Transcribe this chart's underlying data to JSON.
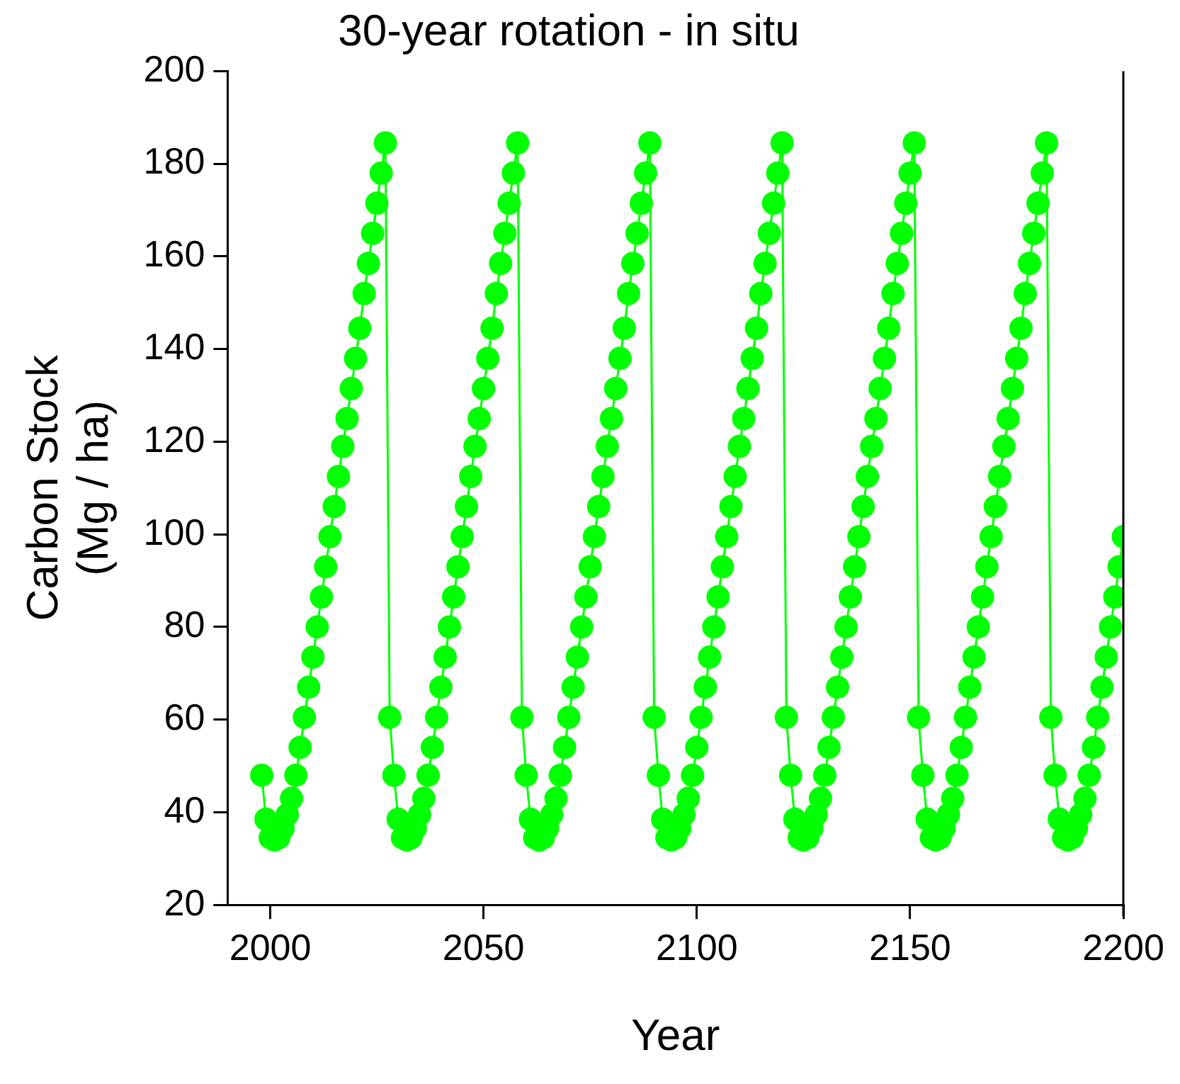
{
  "chart_data": {
    "type": "line",
    "title": "30-year rotation - in situ",
    "xlabel": "Year",
    "ylabel": "Carbon Stock\n(Mg / ha)",
    "x": [
      1998,
      1999,
      2000,
      2001,
      2002,
      2003,
      2004,
      2005,
      2006,
      2007,
      2008,
      2009,
      2010,
      2011,
      2012,
      2013,
      2014,
      2015,
      2016,
      2017,
      2018,
      2019,
      2020,
      2021,
      2022,
      2023,
      2024,
      2025,
      2026,
      2027,
      2028,
      2029,
      2030,
      2031,
      2032,
      2033,
      2034,
      2035,
      2036,
      2037,
      2038,
      2039,
      2040,
      2041,
      2042,
      2043,
      2044,
      2045,
      2046,
      2047,
      2048,
      2049,
      2050,
      2051,
      2052,
      2053,
      2054,
      2055,
      2056,
      2057,
      2058,
      2059,
      2060,
      2061,
      2062,
      2063,
      2064,
      2065,
      2066,
      2067,
      2068,
      2069,
      2070,
      2071,
      2072,
      2073,
      2074,
      2075,
      2076,
      2077,
      2078,
      2079,
      2080,
      2081,
      2082,
      2083,
      2084,
      2085,
      2086,
      2087,
      2088,
      2089,
      2090,
      2091,
      2092,
      2093,
      2094,
      2095,
      2096,
      2097,
      2098,
      2099,
      2100,
      2101,
      2102,
      2103,
      2104,
      2105,
      2106,
      2107,
      2108,
      2109,
      2110,
      2111,
      2112,
      2113,
      2114,
      2115,
      2116,
      2117,
      2118,
      2119,
      2120,
      2121,
      2122,
      2123,
      2124,
      2125,
      2126,
      2127,
      2128,
      2129,
      2130,
      2131,
      2132,
      2133,
      2134,
      2135,
      2136,
      2137,
      2138,
      2139,
      2140,
      2141,
      2142,
      2143,
      2144,
      2145,
      2146,
      2147,
      2148,
      2149,
      2150,
      2151,
      2152,
      2153,
      2154,
      2155,
      2156,
      2157,
      2158,
      2159,
      2160,
      2161,
      2162,
      2163,
      2164,
      2165,
      2166,
      2167,
      2168,
      2169,
      2170,
      2171,
      2172,
      2173,
      2174,
      2175,
      2176,
      2177,
      2178,
      2179,
      2180,
      2181,
      2182,
      2183,
      2184,
      2185,
      2186,
      2187,
      2188,
      2189,
      2190,
      2191,
      2192,
      2193,
      2194,
      2195,
      2196,
      2197,
      2198,
      2199,
      2200
    ],
    "series": [
      {
        "color": "#00ff00",
        "values": [
          48,
          38.5,
          34.5,
          34,
          34.5,
          36.5,
          39.5,
          43,
          48,
          54,
          60.5,
          67,
          73.5,
          80,
          86.5,
          93,
          99.5,
          106,
          112.5,
          119,
          125,
          131.5,
          138,
          144.5,
          152,
          158.5,
          165,
          171.5,
          178,
          184.5,
          60.5,
          48,
          38.5,
          34.5,
          34,
          34.5,
          36.5,
          39.5,
          43,
          48,
          54,
          60.5,
          67,
          73.5,
          80,
          86.5,
          93,
          99.5,
          106,
          112.5,
          119,
          125,
          131.5,
          138,
          144.5,
          152,
          158.5,
          165,
          171.5,
          178,
          184.5,
          60.5,
          48,
          38.5,
          34.5,
          34,
          34.5,
          36.5,
          39.5,
          43,
          48,
          54,
          60.5,
          67,
          73.5,
          80,
          86.5,
          93,
          99.5,
          106,
          112.5,
          119,
          125,
          131.5,
          138,
          144.5,
          152,
          158.5,
          165,
          171.5,
          178,
          184.5,
          60.5,
          48,
          38.5,
          34.5,
          34,
          34.5,
          36.5,
          39.5,
          43,
          48,
          54,
          60.5,
          67,
          73.5,
          80,
          86.5,
          93,
          99.5,
          106,
          112.5,
          119,
          125,
          131.5,
          138,
          144.5,
          152,
          158.5,
          165,
          171.5,
          178,
          184.5,
          60.5,
          48,
          38.5,
          34.5,
          34,
          34.5,
          36.5,
          39.5,
          43,
          48,
          54,
          60.5,
          67,
          73.5,
          80,
          86.5,
          93,
          99.5,
          106,
          112.5,
          119,
          125,
          131.5,
          138,
          144.5,
          152,
          158.5,
          165,
          171.5,
          178,
          184.5,
          60.5,
          48,
          38.5,
          34.5,
          34,
          34.5,
          36.5,
          39.5,
          43,
          48,
          54,
          60.5,
          67,
          73.5,
          80,
          86.5,
          93,
          99.5,
          106,
          112.5,
          119,
          125,
          131.5,
          138,
          144.5,
          152,
          158.5,
          165,
          171.5,
          178,
          184.5,
          60.5,
          48,
          38.5,
          34.5,
          34,
          34.5,
          36.5,
          39.5,
          43,
          48,
          54,
          60.5,
          67,
          73.5,
          80,
          86.5,
          93,
          99.5
        ]
      }
    ],
    "xlim": [
      1990,
      2200
    ],
    "xticks": [
      2000,
      2050,
      2100,
      2150,
      2200
    ],
    "ylim": [
      20,
      200
    ],
    "yticks": [
      20,
      40,
      60,
      80,
      100,
      120,
      140,
      160,
      180,
      200
    ],
    "grid": false,
    "legend": false,
    "marker": "circle",
    "line_style": "solid"
  }
}
